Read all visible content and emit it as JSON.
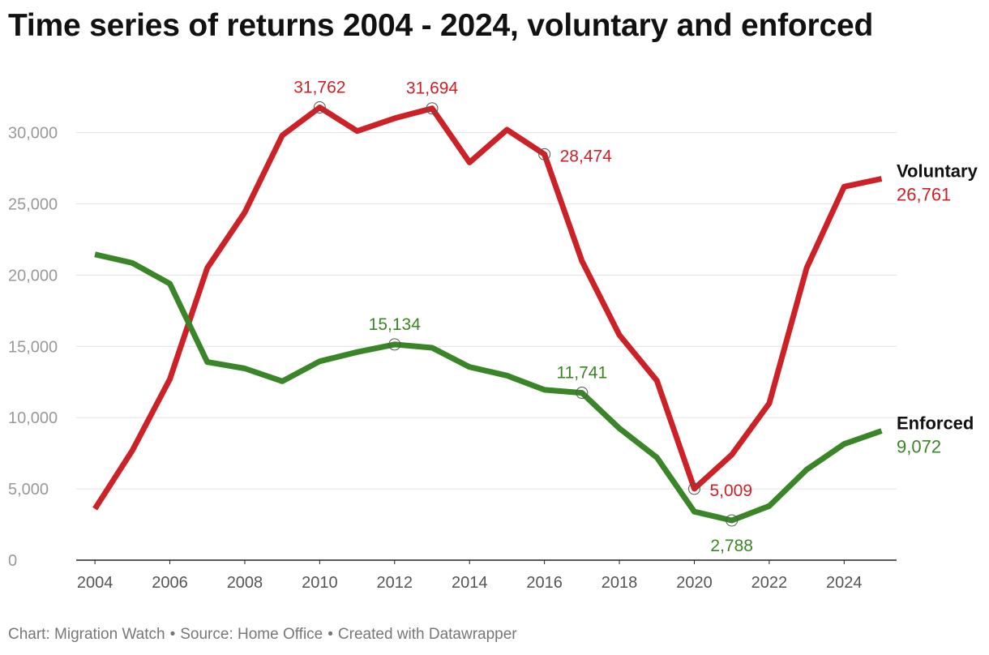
{
  "title": "Time series of returns 2004 - 2024, voluntary and enforced",
  "footer": {
    "chart_by": "Chart: Migration Watch",
    "source": "Source: Home Office",
    "created": "Created with Datawrapper",
    "separator": "•"
  },
  "colors": {
    "voluntary": "#cc2127",
    "enforced": "#3a8527",
    "grid": "#e2e2e2",
    "axis": "#222222",
    "tick_label": "#999999"
  },
  "chart_data": {
    "type": "line",
    "title": "Time series of returns 2004 - 2024, voluntary and enforced",
    "xlabel": "",
    "ylabel": "",
    "x": [
      2004,
      2005,
      2006,
      2007,
      2008,
      2009,
      2010,
      2011,
      2012,
      2013,
      2014,
      2015,
      2016,
      2017,
      2018,
      2019,
      2020,
      2021,
      2022,
      2023,
      2024,
      2025
    ],
    "xlim": [
      2003.5,
      2025.4
    ],
    "ylim": [
      0,
      36000
    ],
    "x_ticks": [
      2004,
      2006,
      2008,
      2010,
      2012,
      2014,
      2016,
      2018,
      2020,
      2022,
      2024
    ],
    "x_tick_labels": [
      "2004",
      "2006",
      "2008",
      "2010",
      "2012",
      "2014",
      "2016",
      "2018",
      "2020",
      "2022",
      "2024"
    ],
    "y_ticks": [
      0,
      5000,
      10000,
      15000,
      20000,
      25000,
      30000
    ],
    "y_tick_labels": [
      "0",
      "5,000",
      "10,000",
      "15,000",
      "20,000",
      "25,000",
      "30,000"
    ],
    "grid": true,
    "legend": "direct labels at line ends (right)",
    "series": [
      {
        "name": "Voluntary",
        "color": "#cc2127",
        "end_label": "26,761",
        "values": [
          3600,
          7700,
          12700,
          20500,
          24400,
          29800,
          31762,
          30100,
          31000,
          31694,
          27900,
          30200,
          28474,
          21000,
          15800,
          12600,
          5009,
          7400,
          11000,
          20500,
          26200,
          26761
        ]
      },
      {
        "name": "Enforced",
        "color": "#3a8527",
        "end_label": "9,072",
        "values": [
          21450,
          20850,
          19400,
          13900,
          13450,
          12550,
          13950,
          14600,
          15134,
          14900,
          13550,
          12950,
          11950,
          11741,
          9250,
          7200,
          3400,
          2788,
          3800,
          6350,
          8150,
          9072
        ]
      }
    ],
    "annotations": [
      {
        "series": "Voluntary",
        "x": 2010,
        "y": 31762,
        "text": "31,762",
        "position": "above"
      },
      {
        "series": "Voluntary",
        "x": 2013,
        "y": 31694,
        "text": "31,694",
        "position": "above"
      },
      {
        "series": "Voluntary",
        "x": 2016,
        "y": 28474,
        "text": "28,474",
        "position": "right"
      },
      {
        "series": "Voluntary",
        "x": 2020,
        "y": 5009,
        "text": "5,009",
        "position": "right"
      },
      {
        "series": "Enforced",
        "x": 2012,
        "y": 15134,
        "text": "15,134",
        "position": "above"
      },
      {
        "series": "Enforced",
        "x": 2017,
        "y": 11741,
        "text": "11,741",
        "position": "above"
      },
      {
        "series": "Enforced",
        "x": 2021,
        "y": 2788,
        "text": "2,788",
        "position": "below"
      }
    ]
  }
}
